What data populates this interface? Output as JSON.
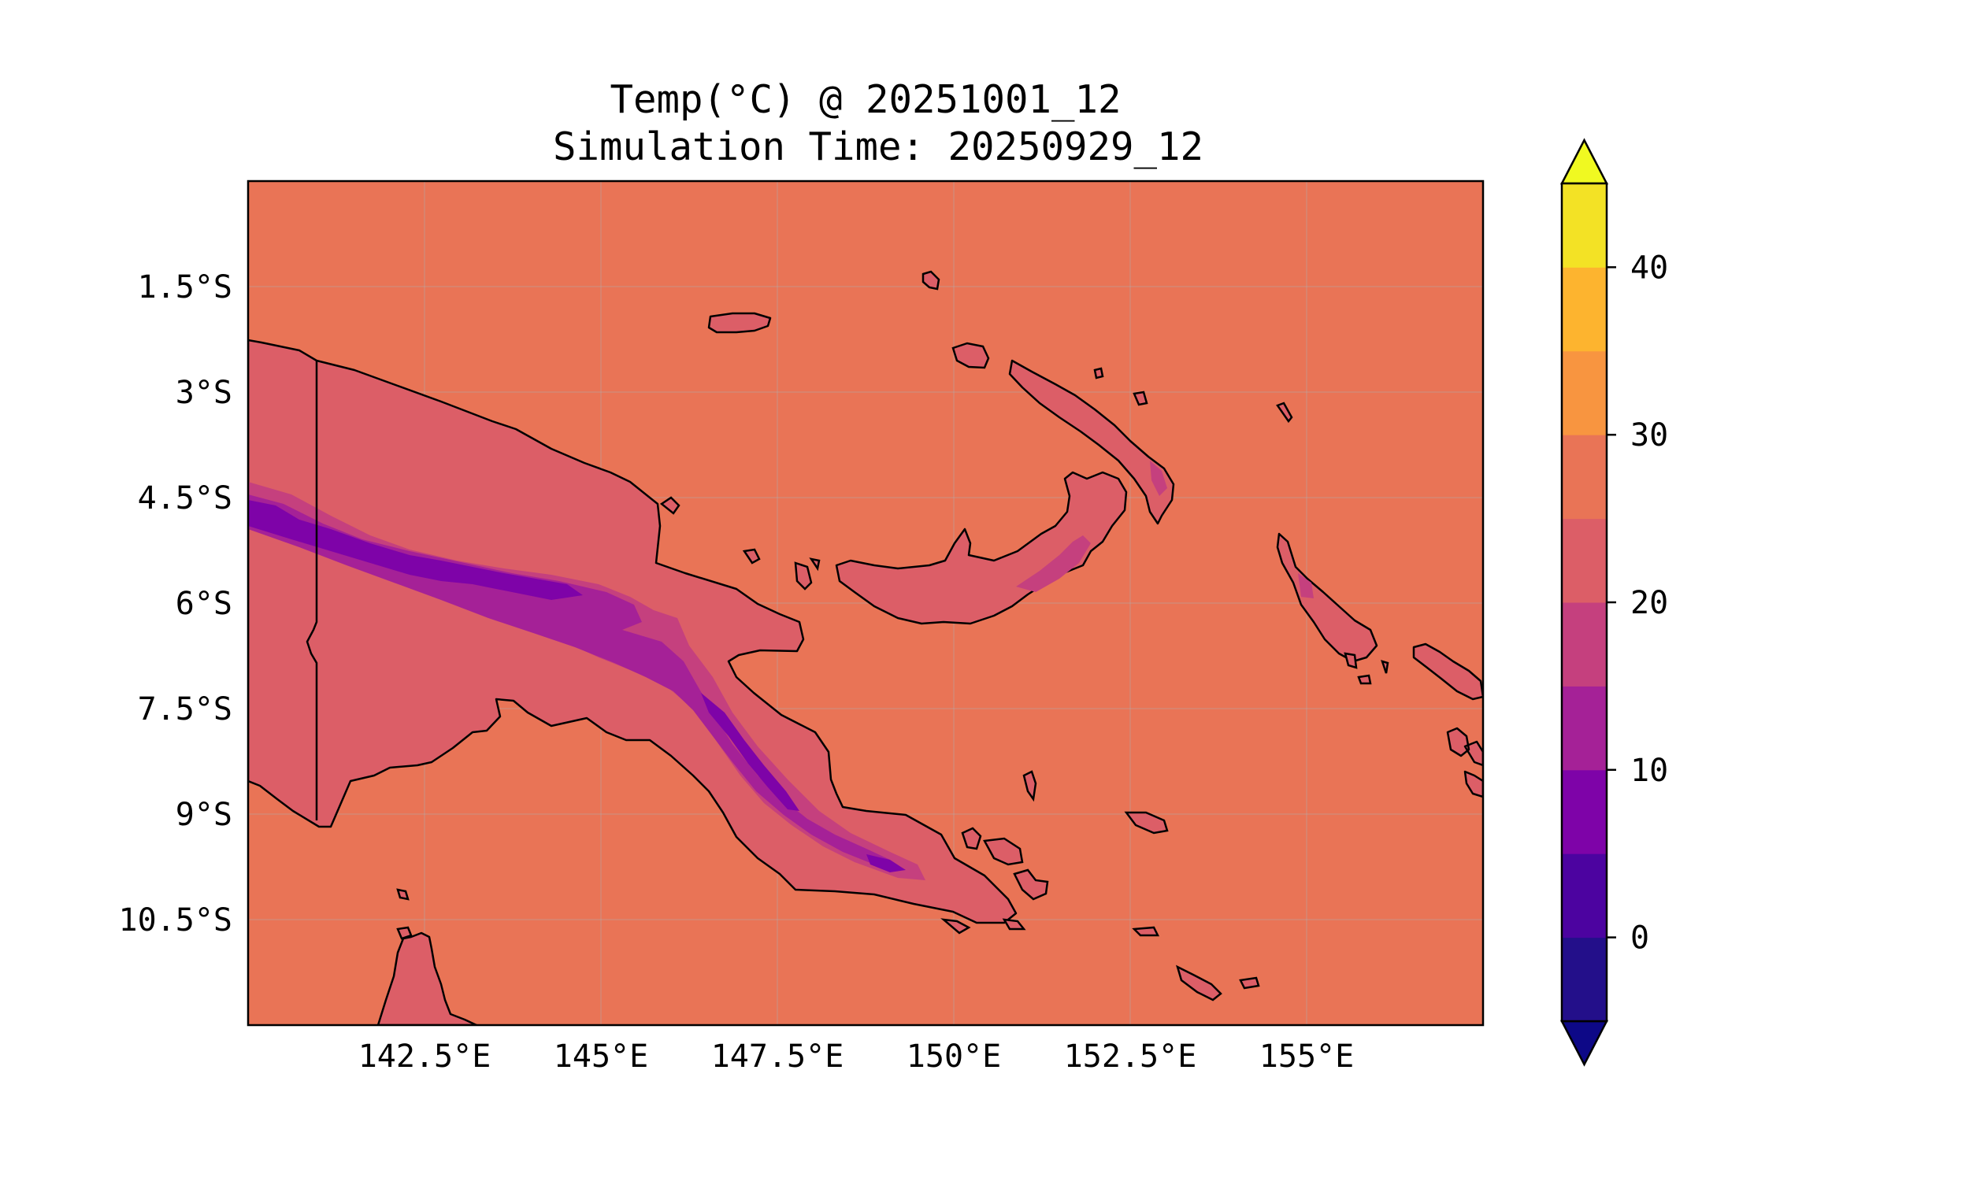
{
  "title": {
    "line1": "Temp(°C) @ 20251001_12",
    "line2": "Simulation Time: 20250929_12"
  },
  "map": {
    "extent": {
      "lon_min": 140.0,
      "lon_max": 157.5,
      "lat_min": -12.0,
      "lat_max": 0.0
    },
    "x_ticks": [
      {
        "value": 142.5,
        "label": "142.5°E"
      },
      {
        "value": 145.0,
        "label": "145°E"
      },
      {
        "value": 147.5,
        "label": "147.5°E"
      },
      {
        "value": 150.0,
        "label": "150°E"
      },
      {
        "value": 152.5,
        "label": "152.5°E"
      },
      {
        "value": 155.0,
        "label": "155°E"
      }
    ],
    "y_ticks": [
      {
        "value": -1.5,
        "label": "1.5°S"
      },
      {
        "value": -3.0,
        "label": "3°S"
      },
      {
        "value": -4.5,
        "label": "4.5°S"
      },
      {
        "value": -6.0,
        "label": "6°S"
      },
      {
        "value": -7.5,
        "label": "7.5°S"
      },
      {
        "value": -9.0,
        "label": "9°S"
      },
      {
        "value": -10.5,
        "label": "10.5°S"
      }
    ],
    "background_level_color": "#e97456",
    "grid": true
  },
  "colorbar": {
    "levels": [
      -5,
      0,
      5,
      10,
      15,
      20,
      25,
      30,
      35,
      40,
      45
    ],
    "colors": [
      "#230f8a",
      "#4c03a0",
      "#7e03a8",
      "#a52197",
      "#c5407e",
      "#dc5e67",
      "#e97456",
      "#f89540",
      "#fdb42f",
      "#f3e225"
    ],
    "under_color": "#0d0887",
    "over_color": "#f0f921",
    "ticks": [
      {
        "value": 0,
        "label": "0"
      },
      {
        "value": 10,
        "label": "10"
      },
      {
        "value": 20,
        "label": "20"
      },
      {
        "value": 30,
        "label": "30"
      },
      {
        "value": 40,
        "label": "40"
      }
    ]
  }
}
